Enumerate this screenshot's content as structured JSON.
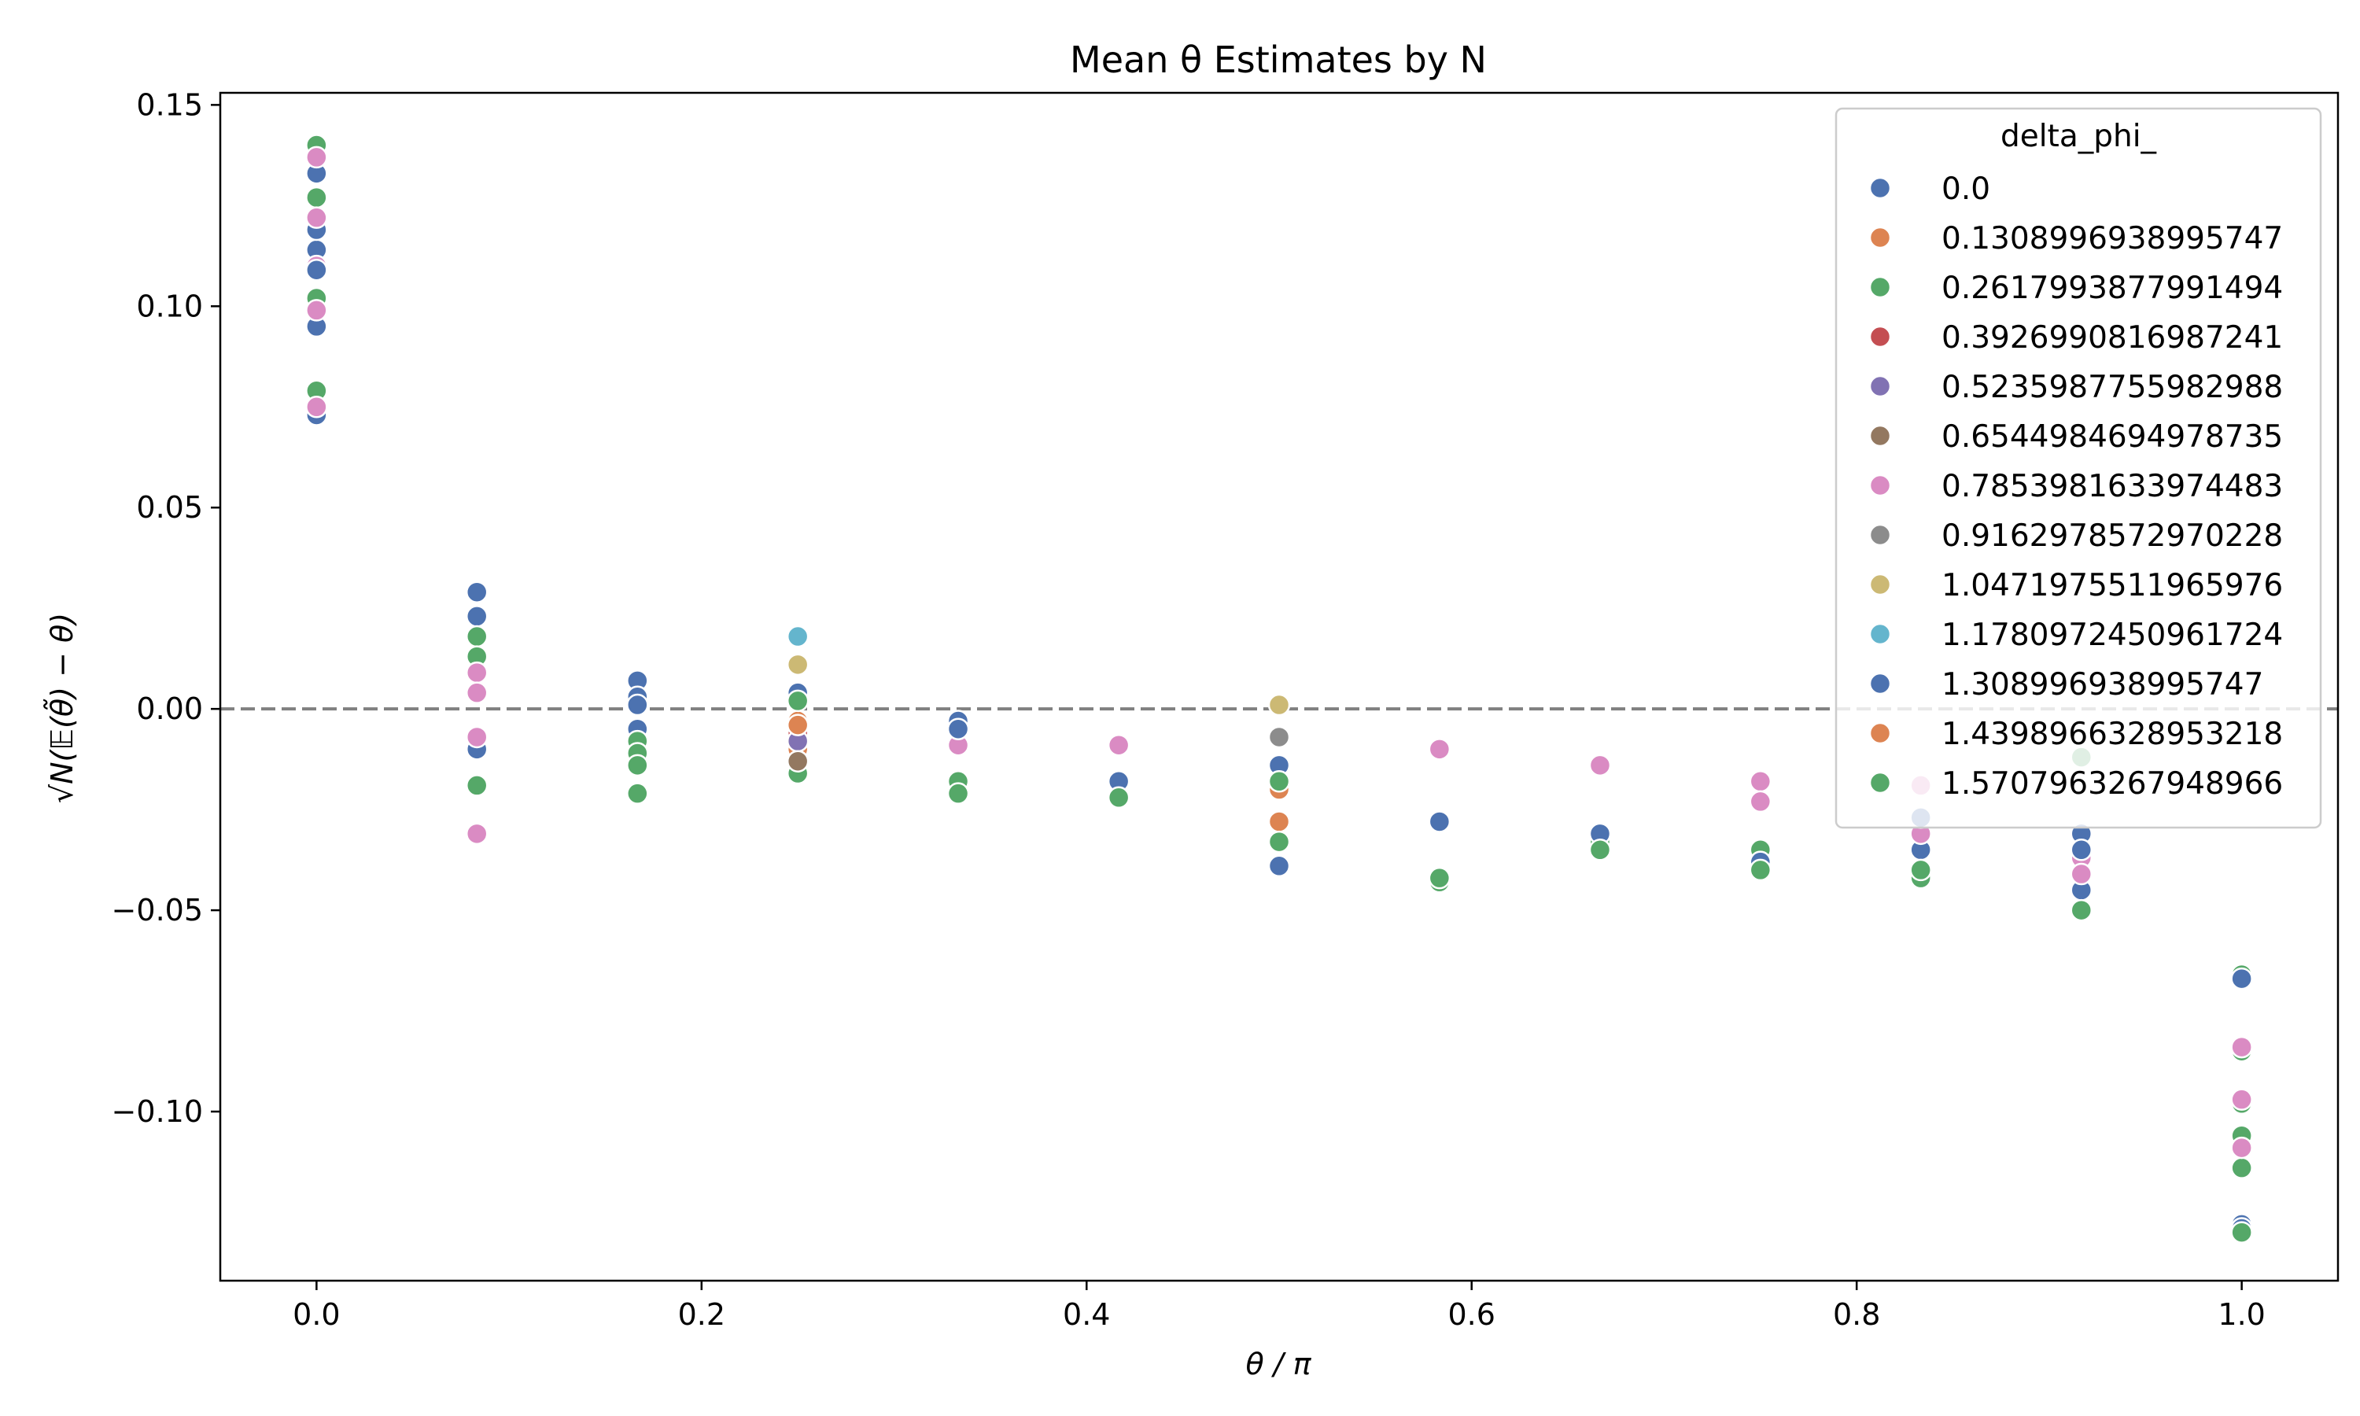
{
  "chart_data": {
    "type": "scatter",
    "title": "Mean θ Estimates by N",
    "xlabel": "θ / π",
    "ylabel": "√N(𝔼(θ̃) − θ)",
    "xlim": [
      -0.05,
      1.05
    ],
    "ylim": [
      -0.142,
      0.153
    ],
    "xticks": [
      0.0,
      0.2,
      0.4,
      0.6,
      0.8,
      1.0
    ],
    "xtick_labels": [
      "0.0",
      "0.2",
      "0.4",
      "0.6",
      "0.8",
      "1.0"
    ],
    "yticks": [
      0.15,
      0.1,
      0.05,
      0.0,
      -0.05,
      -0.1
    ],
    "ytick_labels": [
      "0.15",
      "0.10",
      "0.05",
      "0.00",
      "−0.05",
      "−0.10"
    ],
    "reference_line": {
      "y": 0.0,
      "style": "dashed",
      "color": "#808080"
    },
    "grid": false,
    "legend": {
      "title": "delta_phi_",
      "position": "top-right"
    },
    "series": [
      {
        "name": "0.0",
        "color": "#4c72b0",
        "points": [
          [
            0.0,
            0.073
          ],
          [
            0.0,
            0.095
          ],
          [
            0.0,
            0.114
          ],
          [
            0.0,
            0.119
          ],
          [
            0.0,
            0.133
          ],
          [
            0.0833,
            0.029
          ],
          [
            0.0833,
            0.023
          ],
          [
            0.0833,
            -0.01
          ],
          [
            0.1667,
            0.007
          ],
          [
            0.1667,
            0.003
          ],
          [
            0.1667,
            -0.005
          ],
          [
            0.25,
            0.004
          ],
          [
            0.3333,
            -0.003
          ],
          [
            0.4167,
            -0.018
          ],
          [
            0.5,
            -0.014
          ],
          [
            0.5,
            -0.039
          ],
          [
            0.5833,
            -0.028
          ],
          [
            0.6667,
            -0.034
          ],
          [
            0.75,
            -0.039
          ],
          [
            0.8333,
            -0.035
          ],
          [
            0.9167,
            -0.045
          ],
          [
            1.0,
            -0.128
          ]
        ]
      },
      {
        "name": "0.1308996938995747",
        "color": "#dd8452",
        "points": [
          [
            0.25,
            -0.01
          ],
          [
            0.25,
            -0.003
          ],
          [
            0.5,
            -0.02
          ],
          [
            0.5,
            -0.028
          ]
        ]
      },
      {
        "name": "0.2617993877991494",
        "color": "#55a868",
        "points": [
          [
            0.0,
            0.14
          ],
          [
            0.0,
            0.127
          ],
          [
            0.0,
            0.102
          ],
          [
            0.0,
            0.079
          ],
          [
            0.0833,
            0.018
          ],
          [
            0.0833,
            0.013
          ],
          [
            0.0833,
            -0.019
          ],
          [
            0.1667,
            -0.008
          ],
          [
            0.1667,
            -0.011
          ],
          [
            0.1667,
            -0.021
          ],
          [
            0.25,
            0.002
          ],
          [
            0.25,
            -0.016
          ],
          [
            0.3333,
            -0.018
          ],
          [
            0.4167,
            -0.022
          ],
          [
            0.5,
            -0.033
          ],
          [
            0.5833,
            -0.043
          ],
          [
            0.6667,
            -0.033
          ],
          [
            0.75,
            -0.035
          ],
          [
            0.8333,
            -0.042
          ],
          [
            0.9167,
            -0.05
          ],
          [
            0.9167,
            -0.012
          ],
          [
            1.0,
            -0.066
          ],
          [
            1.0,
            -0.085
          ],
          [
            1.0,
            -0.098
          ],
          [
            1.0,
            -0.106
          ],
          [
            1.0,
            -0.114
          ]
        ]
      },
      {
        "name": "0.3926990816987241",
        "color": "#c44e52",
        "points": [
          [
            0.25,
            -0.006
          ]
        ]
      },
      {
        "name": "0.5235987755982988",
        "color": "#8172b3",
        "points": [
          [
            0.25,
            -0.008
          ]
        ]
      },
      {
        "name": "0.6544984694978735",
        "color": "#937860",
        "points": [
          [
            0.25,
            -0.013
          ]
        ]
      },
      {
        "name": "0.7853981633974483",
        "color": "#da8bc3",
        "points": [
          [
            0.0,
            0.137
          ],
          [
            0.0,
            0.122
          ],
          [
            0.0,
            0.11
          ],
          [
            0.0,
            0.099
          ],
          [
            0.0,
            0.075
          ],
          [
            0.0833,
            0.009
          ],
          [
            0.0833,
            0.004
          ],
          [
            0.0833,
            -0.007
          ],
          [
            0.0833,
            -0.031
          ],
          [
            0.3333,
            -0.009
          ],
          [
            0.4167,
            -0.009
          ],
          [
            0.5833,
            -0.01
          ],
          [
            0.6667,
            -0.014
          ],
          [
            0.75,
            -0.018
          ],
          [
            0.75,
            -0.023
          ],
          [
            0.8333,
            -0.019
          ],
          [
            0.8333,
            -0.031
          ],
          [
            0.9167,
            -0.037
          ],
          [
            0.9167,
            -0.041
          ],
          [
            1.0,
            -0.084
          ],
          [
            1.0,
            -0.097
          ],
          [
            1.0,
            -0.109
          ]
        ]
      },
      {
        "name": "0.9162978572970228",
        "color": "#8c8c8c",
        "points": [
          [
            0.5,
            -0.007
          ]
        ]
      },
      {
        "name": "1.0471975511965976",
        "color": "#ccb974",
        "points": [
          [
            0.25,
            0.011
          ],
          [
            0.5,
            0.001
          ]
        ]
      },
      {
        "name": "1.1780972450961724",
        "color": "#64b5cd",
        "points": [
          [
            0.25,
            0.018
          ]
        ]
      },
      {
        "name": "1.308996938995747",
        "color": "#4c72b0",
        "points": [
          [
            0.0,
            0.109
          ],
          [
            0.1667,
            0.001
          ],
          [
            0.3333,
            -0.005
          ],
          [
            0.6667,
            -0.031
          ],
          [
            0.75,
            -0.038
          ],
          [
            0.8333,
            -0.027
          ],
          [
            0.9167,
            -0.031
          ],
          [
            0.9167,
            -0.035
          ],
          [
            1.0,
            -0.067
          ],
          [
            1.0,
            -0.129
          ]
        ]
      },
      {
        "name": "1.4398966328953218",
        "color": "#dd8452",
        "points": [
          [
            0.25,
            -0.004
          ]
        ]
      },
      {
        "name": "1.5707963267948966",
        "color": "#55a868",
        "points": [
          [
            0.1667,
            -0.014
          ],
          [
            0.3333,
            -0.021
          ],
          [
            0.5,
            -0.018
          ],
          [
            0.5833,
            -0.042
          ],
          [
            0.6667,
            -0.035
          ],
          [
            0.75,
            -0.04
          ],
          [
            0.8333,
            -0.04
          ],
          [
            1.0,
            -0.13
          ]
        ]
      }
    ]
  }
}
